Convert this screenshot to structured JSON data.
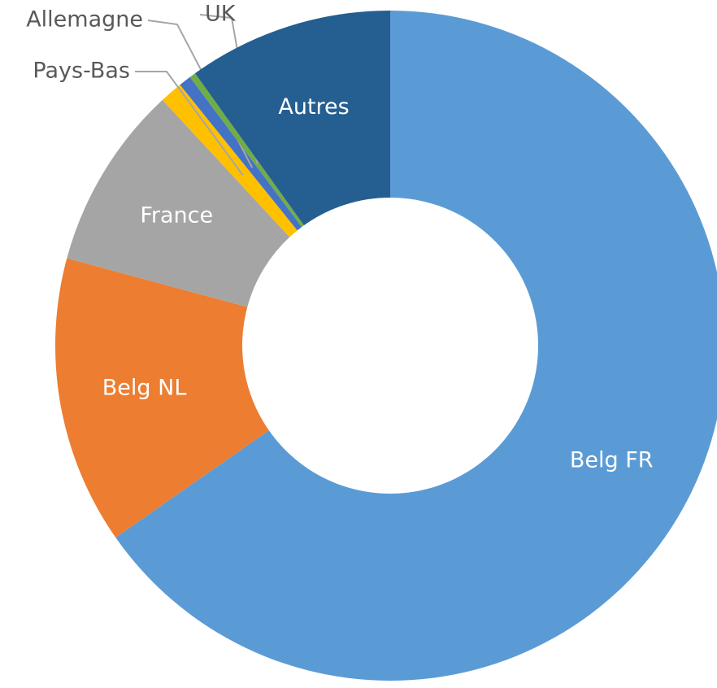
{
  "chart_data": {
    "type": "donut",
    "categories": [
      "Belg FR",
      "Belg NL",
      "France",
      "Pays-Bas",
      "Allemagne",
      "UK",
      "Autres"
    ],
    "values": [
      65.3,
      13.9,
      8.9,
      1.1,
      0.6,
      0.3,
      9.9
    ],
    "colors": [
      "#5b9bd5",
      "#ed7d31",
      "#a5a5a5",
      "#ffc000",
      "#4472c4",
      "#70ad47",
      "#255e91"
    ]
  }
}
